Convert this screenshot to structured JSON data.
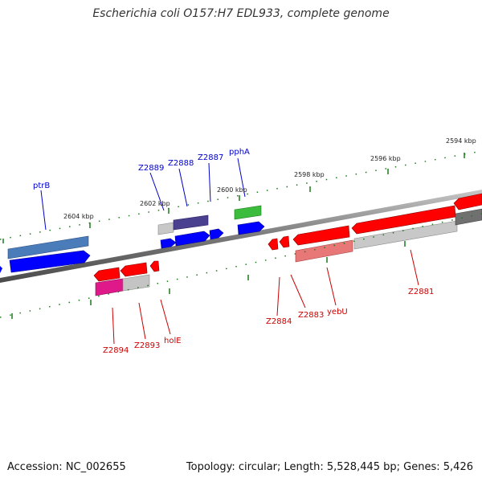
{
  "title": "Escherichia coli O157:H7 EDL933, complete genome",
  "footer": {
    "accession": "Accession: NC_002655",
    "topology": "Topology: circular; Length: 5,528,445 bp; Genes: 5,426"
  },
  "scale_labels": [
    "2604 kbp",
    "2602 kbp",
    "2600 kbp",
    "2598 kbp",
    "2596 kbp",
    "2594 kbp"
  ],
  "forward_gene_labels": [
    "ptrB",
    "Z2889",
    "Z2888",
    "Z2887",
    "pphA"
  ],
  "reverse_gene_labels": [
    "Z2894",
    "Z2893",
    "holE",
    "Z2884",
    "Z2883",
    "yebU",
    "Z2881"
  ],
  "colors": {
    "forward_label": "#0000cc",
    "reverse_label": "#cc0000",
    "forward_gene": "#0000ff",
    "reverse_gene": "#ff0000",
    "backbone": "#808080",
    "tick": "#1a7a1a"
  }
}
